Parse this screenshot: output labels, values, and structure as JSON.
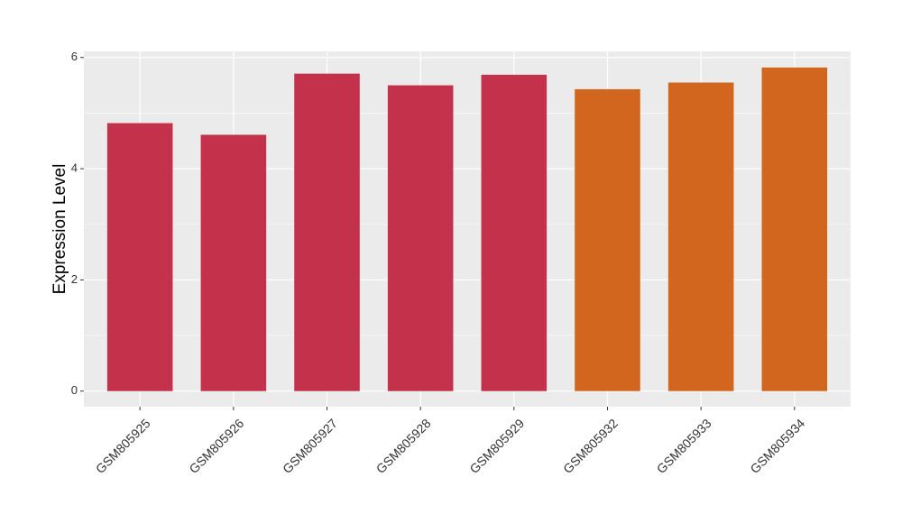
{
  "chart_data": {
    "type": "bar",
    "ylabel": "Expression Level",
    "categories": [
      "GSM805925",
      "GSM805926",
      "GSM805927",
      "GSM805928",
      "GSM805929",
      "GSM805932",
      "GSM805933",
      "GSM805934"
    ],
    "values": [
      4.82,
      4.61,
      5.71,
      5.5,
      5.69,
      5.43,
      5.55,
      5.82
    ],
    "colors": [
      "#c3314a",
      "#c3314a",
      "#c3314a",
      "#c3314a",
      "#c3314a",
      "#d2661f",
      "#d2661f",
      "#d2661f"
    ],
    "ylim": [
      -0.28,
      6.11
    ],
    "yticks": [
      0,
      2,
      4,
      6
    ],
    "minor_yticks": [
      1,
      3,
      5
    ],
    "grid": true
  }
}
